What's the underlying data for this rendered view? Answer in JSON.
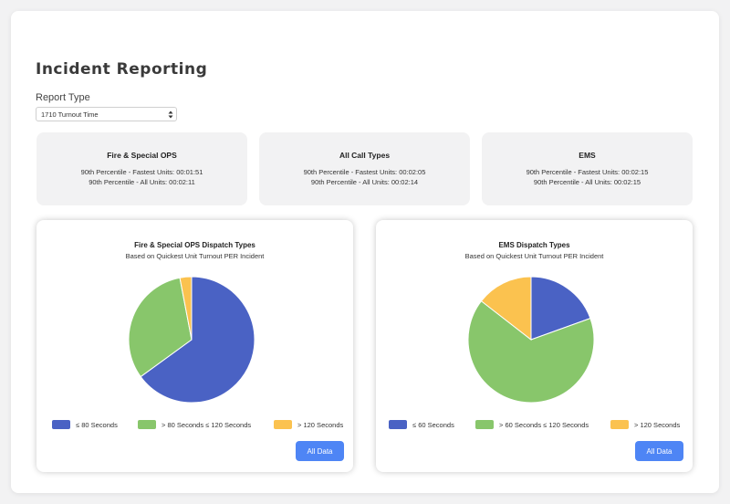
{
  "page": {
    "title": "Incident Reporting",
    "report_type_label": "Report Type",
    "report_type_value": "1710 Turnout Time"
  },
  "stats": [
    {
      "title": "Fire & Special OPS",
      "fastest": "90th Percentile - Fastest Units: 00:01:51",
      "all": "90th Percentile - All Units: 00:02:11"
    },
    {
      "title": "All Call Types",
      "fastest": "90th Percentile - Fastest Units: 00:02:05",
      "all": "90th Percentile - All Units: 00:02:14"
    },
    {
      "title": "EMS",
      "fastest": "90th Percentile - Fastest Units: 00:02:15",
      "all": "90th Percentile - All Units: 00:02:15"
    }
  ],
  "colors": {
    "blue": "#4a62c4",
    "green": "#88c66b",
    "yellow": "#fbc24f",
    "button": "#4e85f5"
  },
  "chart_data": [
    {
      "type": "pie",
      "title": "Fire & Special OPS Dispatch Types",
      "subtitle": "Based on Quickest Unit Turnout PER Incident",
      "categories": [
        "≤ 80 Seconds",
        "> 80 Seconds ≤ 120 Seconds",
        "> 120 Seconds"
      ],
      "values": [
        65,
        32,
        3
      ],
      "colors": [
        "#4a62c4",
        "#88c66b",
        "#fbc24f"
      ],
      "legend": "bottom",
      "button_label": "All Data"
    },
    {
      "type": "pie",
      "title": "EMS Dispatch Types",
      "subtitle": "Based on Quickest Unit Turnout PER Incident",
      "categories": [
        "≤ 60 Seconds",
        "> 60 Seconds ≤ 120 Seconds",
        "> 120 Seconds"
      ],
      "values": [
        19.5,
        66,
        14.5
      ],
      "colors": [
        "#4a62c4",
        "#88c66b",
        "#fbc24f"
      ],
      "legend": "bottom",
      "button_label": "All Data"
    }
  ]
}
